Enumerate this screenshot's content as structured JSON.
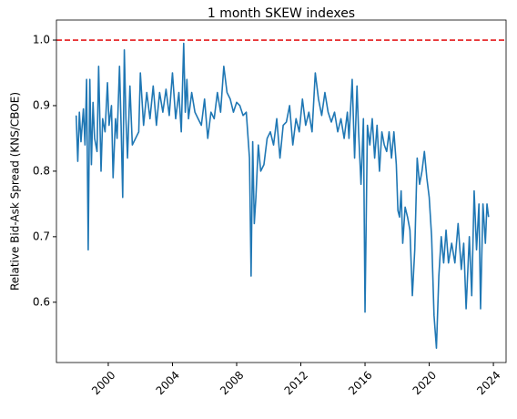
{
  "chart_data": {
    "type": "line",
    "title": "1 month SKEW indexes",
    "ylabel": "Relative Bid-Ask Spread (KNS/CBOE)",
    "reference_line": {
      "y": 1.0,
      "color": "#e41a1c",
      "style": "dashed"
    },
    "xlim": [
      1996.77,
      2024.79
    ],
    "xticks": [
      2000,
      2004,
      2008,
      2012,
      2016,
      2020,
      2024
    ],
    "ylim": [
      0.508,
      1.0306
    ],
    "yticks": [
      0.6,
      0.7,
      0.8,
      0.9,
      {
        "value": 1,
        "label": "1.0"
      }
    ],
    "grid": false,
    "series": [
      {
        "color": "#1f77b4",
        "x": [
          1998.0,
          1998.1,
          1998.2,
          1998.3,
          1998.45,
          1998.55,
          1998.65,
          1998.75,
          1998.85,
          1998.95,
          1999.05,
          1999.15,
          1999.3,
          1999.4,
          1999.55,
          1999.65,
          1999.8,
          1999.95,
          2000.05,
          2000.2,
          2000.3,
          2000.45,
          2000.55,
          2000.7,
          2000.8,
          2000.9,
          2001.0,
          2001.1,
          2001.2,
          2001.35,
          2001.5,
          2001.7,
          2001.9,
          2002.0,
          2002.2,
          2002.4,
          2002.6,
          2002.8,
          2003.0,
          2003.2,
          2003.4,
          2003.6,
          2003.8,
          2004.0,
          2004.2,
          2004.4,
          2004.55,
          2004.7,
          2004.8,
          2004.9,
          2005.0,
          2005.2,
          2005.4,
          2005.6,
          2005.8,
          2006.0,
          2006.2,
          2006.4,
          2006.6,
          2006.8,
          2007.0,
          2007.2,
          2007.4,
          2007.6,
          2007.8,
          2008.0,
          2008.2,
          2008.4,
          2008.6,
          2008.8,
          2008.9,
          2009.0,
          2009.1,
          2009.2,
          2009.35,
          2009.5,
          2009.7,
          2009.9,
          2010.1,
          2010.3,
          2010.5,
          2010.7,
          2010.9,
          2011.1,
          2011.3,
          2011.5,
          2011.7,
          2011.9,
          2012.1,
          2012.3,
          2012.5,
          2012.7,
          2012.9,
          2013.1,
          2013.3,
          2013.5,
          2013.7,
          2013.9,
          2014.1,
          2014.3,
          2014.5,
          2014.7,
          2014.9,
          2015.0,
          2015.2,
          2015.35,
          2015.5,
          2015.6,
          2015.75,
          2015.9,
          2016.0,
          2016.15,
          2016.3,
          2016.45,
          2016.6,
          2016.75,
          2016.9,
          2017.05,
          2017.2,
          2017.35,
          2017.5,
          2017.65,
          2017.8,
          2017.95,
          2018.05,
          2018.15,
          2018.25,
          2018.35,
          2018.5,
          2018.65,
          2018.8,
          2018.95,
          2019.1,
          2019.25,
          2019.4,
          2019.55,
          2019.7,
          2019.85,
          2020.0,
          2020.15,
          2020.3,
          2020.45,
          2020.6,
          2020.75,
          2020.9,
          2021.05,
          2021.2,
          2021.4,
          2021.6,
          2021.8,
          2022.0,
          2022.15,
          2022.3,
          2022.5,
          2022.65,
          2022.8,
          2022.95,
          2023.1,
          2023.2,
          2023.35,
          2023.5,
          2023.6,
          2023.7
        ],
        "values": [
          0.885,
          0.815,
          0.89,
          0.845,
          0.895,
          0.84,
          0.94,
          0.68,
          0.94,
          0.81,
          0.905,
          0.85,
          0.83,
          0.96,
          0.8,
          0.88,
          0.86,
          0.935,
          0.87,
          0.9,
          0.79,
          0.88,
          0.85,
          0.96,
          0.87,
          0.76,
          0.985,
          0.88,
          0.82,
          0.93,
          0.84,
          0.85,
          0.86,
          0.95,
          0.87,
          0.92,
          0.88,
          0.93,
          0.87,
          0.92,
          0.89,
          0.925,
          0.885,
          0.95,
          0.88,
          0.92,
          0.86,
          0.995,
          0.89,
          0.94,
          0.88,
          0.92,
          0.89,
          0.88,
          0.87,
          0.91,
          0.85,
          0.89,
          0.88,
          0.92,
          0.89,
          0.96,
          0.92,
          0.91,
          0.89,
          0.905,
          0.9,
          0.885,
          0.89,
          0.82,
          0.64,
          0.845,
          0.72,
          0.76,
          0.84,
          0.8,
          0.81,
          0.85,
          0.86,
          0.84,
          0.88,
          0.82,
          0.87,
          0.875,
          0.9,
          0.84,
          0.88,
          0.86,
          0.91,
          0.87,
          0.89,
          0.86,
          0.95,
          0.91,
          0.885,
          0.92,
          0.89,
          0.875,
          0.89,
          0.86,
          0.88,
          0.85,
          0.89,
          0.85,
          0.94,
          0.82,
          0.93,
          0.86,
          0.78,
          0.88,
          0.585,
          0.87,
          0.84,
          0.88,
          0.82,
          0.87,
          0.8,
          0.86,
          0.84,
          0.83,
          0.86,
          0.82,
          0.86,
          0.81,
          0.74,
          0.73,
          0.77,
          0.69,
          0.745,
          0.73,
          0.71,
          0.61,
          0.68,
          0.82,
          0.78,
          0.8,
          0.83,
          0.79,
          0.76,
          0.7,
          0.58,
          0.53,
          0.64,
          0.7,
          0.66,
          0.71,
          0.66,
          0.69,
          0.66,
          0.72,
          0.65,
          0.69,
          0.59,
          0.7,
          0.61,
          0.77,
          0.68,
          0.75,
          0.59,
          0.75,
          0.69,
          0.75,
          0.73
        ]
      }
    ]
  }
}
